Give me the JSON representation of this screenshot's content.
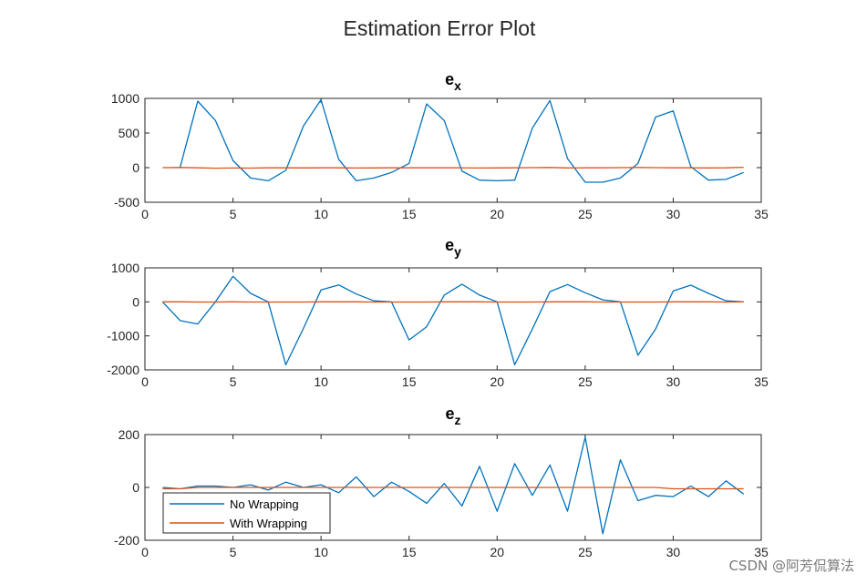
{
  "figure": {
    "title": "Estimation Error Plot",
    "watermark": "CSDN @阿芳侃算法"
  },
  "chart_data": [
    {
      "type": "line",
      "title": "e",
      "title_sub": "x",
      "xlim": [
        0,
        35
      ],
      "ylim": [
        -500,
        1000
      ],
      "xticks": [
        0,
        5,
        10,
        15,
        20,
        25,
        30,
        35
      ],
      "yticks": [
        -500,
        0,
        500,
        1000
      ],
      "series": [
        {
          "color": "#0072BD",
          "x": [
            2,
            3,
            4,
            5,
            6,
            7,
            8,
            9,
            10,
            11,
            12,
            13,
            14,
            15,
            16,
            17,
            18,
            19,
            20,
            21,
            22,
            23,
            24,
            25,
            26,
            27,
            28,
            29,
            30,
            31,
            32,
            33,
            34
          ],
          "values": [
            5,
            960,
            680,
            100,
            -150,
            -190,
            -40,
            600,
            980,
            120,
            -190,
            -150,
            -70,
            60,
            920,
            680,
            -50,
            -180,
            -190,
            -180,
            570,
            970,
            130,
            -210,
            -210,
            -150,
            60,
            730,
            820,
            15,
            -180,
            -170,
            -70
          ]
        },
        {
          "color": "#D95319",
          "x": [
            1,
            2,
            3,
            4,
            5,
            6,
            7,
            8,
            9,
            10,
            11,
            12,
            13,
            14,
            15,
            16,
            17,
            18,
            19,
            20,
            21,
            22,
            23,
            24,
            25,
            26,
            27,
            28,
            29,
            30,
            31,
            32,
            33,
            34
          ],
          "values": [
            0,
            2,
            -2,
            -8,
            -5,
            -6,
            -3,
            -3,
            -4,
            -3,
            -3,
            -5,
            -4,
            -2,
            -2,
            -3,
            -2,
            -3,
            -5,
            -4,
            -3,
            0,
            2,
            -4,
            -3,
            -2,
            0,
            2,
            0,
            -2,
            -3,
            -4,
            -2,
            5
          ]
        }
      ]
    },
    {
      "type": "line",
      "title": "e",
      "title_sub": "y",
      "xlim": [
        0,
        35
      ],
      "ylim": [
        -2000,
        1000
      ],
      "xticks": [
        0,
        5,
        10,
        15,
        20,
        25,
        30,
        35
      ],
      "yticks": [
        -2000,
        -1000,
        0,
        1000
      ],
      "series": [
        {
          "color": "#0072BD",
          "x": [
            1,
            2,
            3,
            4,
            5,
            6,
            7,
            8,
            9,
            10,
            11,
            12,
            13,
            14,
            15,
            16,
            17,
            18,
            19,
            20,
            21,
            22,
            23,
            24,
            25,
            26,
            27,
            28,
            29,
            30,
            31,
            32,
            33,
            34
          ],
          "values": [
            0,
            -550,
            -650,
            0,
            750,
            250,
            0,
            -1850,
            -780,
            350,
            500,
            230,
            30,
            0,
            -1120,
            -730,
            200,
            520,
            200,
            0,
            -1850,
            -800,
            300,
            510,
            270,
            60,
            0,
            -1570,
            -800,
            320,
            490,
            250,
            30,
            0
          ]
        },
        {
          "color": "#D95319",
          "x": [
            1,
            2,
            3,
            4,
            5,
            6,
            7,
            8,
            9,
            10,
            11,
            12,
            13,
            14,
            15,
            16,
            17,
            18,
            19,
            20,
            21,
            22,
            23,
            24,
            25,
            26,
            27,
            28,
            29,
            30,
            31,
            32,
            33,
            34
          ],
          "values": [
            0,
            0,
            -5,
            -5,
            0,
            -5,
            -5,
            -5,
            -5,
            0,
            0,
            0,
            -5,
            -5,
            -5,
            -5,
            0,
            0,
            0,
            -5,
            -5,
            -5,
            0,
            0,
            0,
            -5,
            -5,
            -5,
            -5,
            0,
            0,
            0,
            -5,
            0
          ]
        }
      ]
    },
    {
      "type": "line",
      "title": "e",
      "title_sub": "z",
      "xlim": [
        0,
        35
      ],
      "ylim": [
        -200,
        200
      ],
      "xticks": [
        0,
        5,
        10,
        15,
        20,
        25,
        30,
        35
      ],
      "yticks": [
        -200,
        0,
        200
      ],
      "legend": {
        "position": "bottom-left",
        "entries": [
          {
            "label": "No Wrapping",
            "color": "#0072BD"
          },
          {
            "label": "With Wrapping",
            "color": "#D95319"
          }
        ]
      },
      "series": [
        {
          "color": "#0072BD",
          "x": [
            1,
            2,
            3,
            4,
            5,
            6,
            7,
            8,
            9,
            10,
            11,
            12,
            13,
            14,
            15,
            16,
            17,
            18,
            19,
            20,
            21,
            22,
            23,
            24,
            25,
            26,
            27,
            28,
            29,
            30,
            31,
            32,
            33,
            34
          ],
          "values": [
            0,
            -5,
            5,
            5,
            0,
            10,
            -10,
            20,
            0,
            10,
            -20,
            40,
            -35,
            20,
            -15,
            -60,
            15,
            -70,
            80,
            -90,
            90,
            -30,
            85,
            -90,
            190,
            -175,
            105,
            -50,
            -30,
            -35,
            5,
            -35,
            25,
            -25
          ]
        },
        {
          "color": "#D95319",
          "x": [
            1,
            2,
            3,
            4,
            5,
            6,
            7,
            8,
            9,
            10,
            11,
            12,
            13,
            14,
            15,
            16,
            17,
            18,
            19,
            20,
            21,
            22,
            23,
            24,
            25,
            26,
            27,
            28,
            29,
            30,
            31,
            32,
            33,
            34
          ],
          "values": [
            -5,
            -5,
            0,
            0,
            0,
            0,
            0,
            0,
            0,
            0,
            0,
            0,
            0,
            0,
            0,
            0,
            0,
            0,
            0,
            0,
            0,
            0,
            0,
            0,
            0,
            0,
            0,
            0,
            0,
            -5,
            -5,
            -5,
            -5,
            -5
          ]
        }
      ]
    }
  ]
}
